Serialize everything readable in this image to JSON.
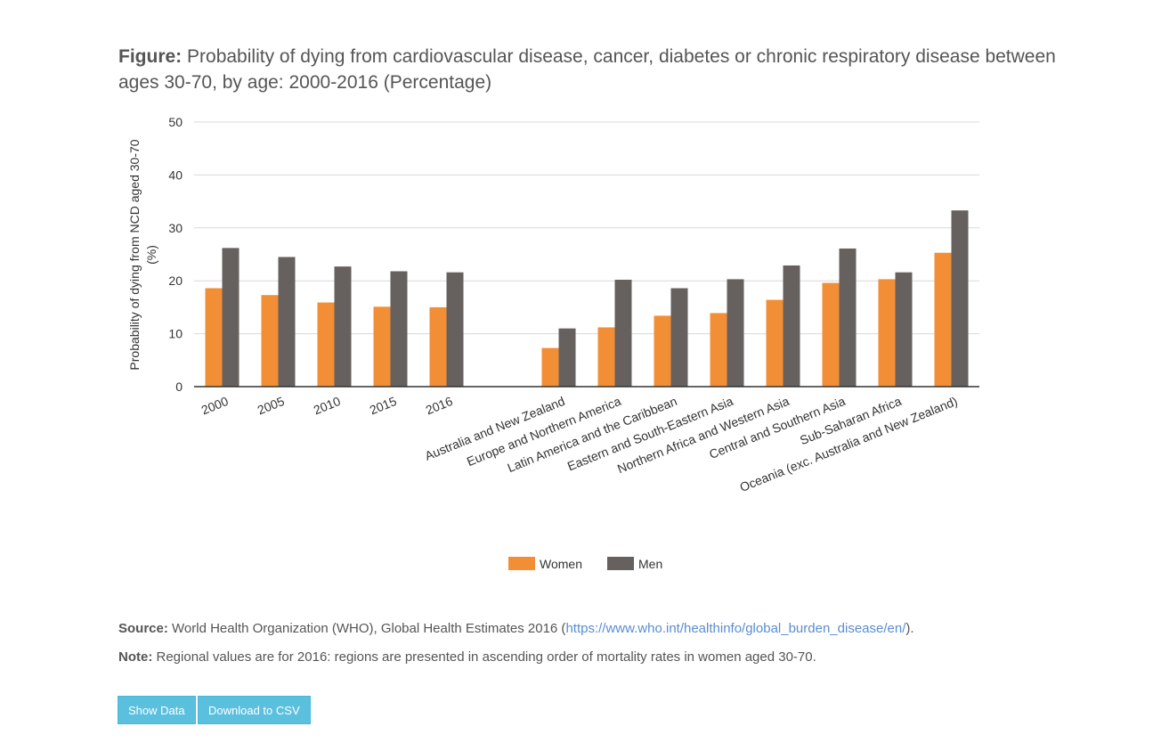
{
  "figure": {
    "title_prefix": "Figure:",
    "title_text": "Probability of dying from cardiovascular disease, cancer, diabetes or chronic respiratory disease between ages 30-70, by age: 2000-2016 (Percentage)"
  },
  "chart_data": {
    "type": "bar",
    "ylabel_line1": "Probability of dying from NCD aged 30-70",
    "ylabel_line2": "(%)",
    "xlabel": "",
    "ylim": [
      0,
      50
    ],
    "yticks": [
      0,
      10,
      20,
      30,
      40,
      50
    ],
    "grid": true,
    "legend_position": "bottom",
    "categories": [
      "2000",
      "2005",
      "2010",
      "2015",
      "2016",
      "",
      "Australia and New Zealand",
      "Europe and Northern America",
      "Latin America and the Caribbean",
      "Eastern and South-Eastern Asia",
      "Northern Africa and Western Asia",
      "Central and Southern Asia",
      "Sub-Saharan Africa",
      "Oceania (exc. Australia and New Zealand)"
    ],
    "series": [
      {
        "name": "Women",
        "color": "#f28e35",
        "values": [
          18.6,
          17.3,
          15.9,
          15.1,
          15.0,
          null,
          7.3,
          11.2,
          13.4,
          13.9,
          16.4,
          19.6,
          20.3,
          25.3
        ]
      },
      {
        "name": "Men",
        "color": "#66615e",
        "values": [
          26.2,
          24.5,
          22.7,
          21.8,
          21.6,
          null,
          11.0,
          20.2,
          18.6,
          20.3,
          22.9,
          26.1,
          21.6,
          33.3
        ]
      }
    ]
  },
  "source": {
    "label": "Source:",
    "text": "World Health Organization (WHO), Global Health Estimates 2016 (",
    "link": "https://www.who.int/healthinfo/global_burden_disease/en/",
    "suffix": ")."
  },
  "note": {
    "label": "Note:",
    "text": "Regional values are for 2016: regions are presented in ascending order of mortality rates in women aged 30-70."
  },
  "buttons": {
    "show_data": "Show Data",
    "download_csv": "Download to CSV"
  }
}
